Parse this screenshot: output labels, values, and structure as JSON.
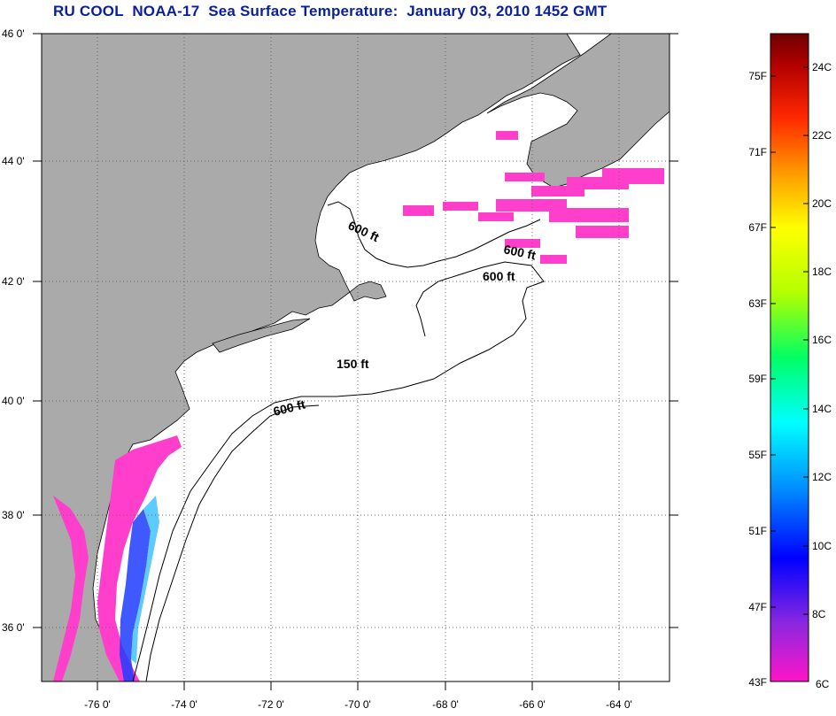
{
  "title": "RU COOL  NOAA-17  Sea Surface Temperature:  January 03, 2010 1452 GMT",
  "map": {
    "lat_ticks": [
      {
        "value": 46,
        "label": "46 0'"
      },
      {
        "value": 44,
        "label": "44 0'"
      },
      {
        "value": 42,
        "label": "42 0'"
      },
      {
        "value": 40,
        "label": "40 0'"
      },
      {
        "value": 38,
        "label": "38 0'"
      },
      {
        "value": 36,
        "label": "36 0'"
      }
    ],
    "lon_ticks": [
      {
        "value": -76,
        "label": "-76 0'"
      },
      {
        "value": -74,
        "label": "-74 0'"
      },
      {
        "value": -72,
        "label": "-72 0'"
      },
      {
        "value": -70,
        "label": "-70 0'"
      },
      {
        "value": -68,
        "label": "-68 0'"
      },
      {
        "value": -66,
        "label": "-66 0'"
      },
      {
        "value": -64,
        "label": "-64 0'"
      }
    ],
    "lon_range": [
      -77.0,
      -62.5
    ],
    "lat_range": [
      35.1,
      46.0
    ],
    "land_color": "#aaaaaa",
    "water_color": "#ffffff",
    "grid": "dotted",
    "contour_labels": [
      {
        "text": "600 ft",
        "lon": -70.4,
        "lat": 42.9
      },
      {
        "text": "600 ft",
        "lon": -66.7,
        "lat": 42.5
      },
      {
        "text": "600 ft",
        "lon": -67.2,
        "lat": 42.1
      },
      {
        "text": "150 ft",
        "lon": -69.9,
        "lat": 40.6
      },
      {
        "text": "600 ft",
        "lon": -71.4,
        "lat": 39.9
      }
    ]
  },
  "colorbar": {
    "fahrenheit_labels": [
      "75F",
      "71F",
      "67F",
      "63F",
      "59F",
      "55F",
      "51F",
      "47F",
      "43F"
    ],
    "celsius_labels": [
      "24C",
      "22C",
      "20C",
      "18C",
      "16C",
      "14C",
      "12C",
      "10C",
      "8C",
      "6C"
    ],
    "colors": [
      "#ff14c8",
      "#8a28e0",
      "#0000ff",
      "#0090ff",
      "#00ffff",
      "#00ff64",
      "#b4ff00",
      "#ffff00",
      "#ffa000",
      "#ff2800",
      "#b40000",
      "#6e0000"
    ]
  }
}
